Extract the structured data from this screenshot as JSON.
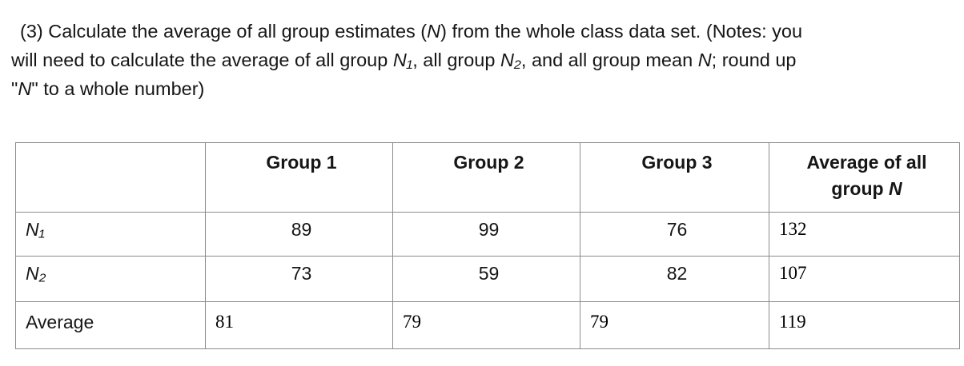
{
  "question": {
    "lines": [
      [
        {
          "t": "(3) Calculate the average of all group estimates ("
        },
        {
          "t": "N",
          "i": true
        },
        {
          "t": ") from the whole class data set. (Notes: you"
        }
      ],
      [
        {
          "t": "will need to calculate the average of all group "
        },
        {
          "t": "N₁",
          "i": true
        },
        {
          "t": ", all group "
        },
        {
          "t": "N₂",
          "i": true
        },
        {
          "t": ", and all group mean "
        },
        {
          "t": "N",
          "i": true
        },
        {
          "t": "; round up"
        }
      ],
      [
        {
          "t": "\""
        },
        {
          "t": "N",
          "i": true
        },
        {
          "t": "\" to a whole number)"
        }
      ]
    ]
  },
  "table": {
    "header": {
      "col1": "Group 1",
      "col2": "Group 2",
      "col3": "Group 3",
      "col4_segments": [
        {
          "t": "Average of all group "
        },
        {
          "t": "N",
          "i": true
        }
      ]
    },
    "rows": [
      {
        "label_segments": [
          {
            "t": "N₁",
            "i": true
          }
        ],
        "values": [
          "89",
          "99",
          "76",
          "132"
        ]
      },
      {
        "label_segments": [
          {
            "t": "N₂",
            "i": true
          }
        ],
        "values": [
          "73",
          "59",
          "82",
          "107"
        ]
      },
      {
        "label_segments": [
          {
            "t": "Average"
          }
        ],
        "values": [
          "81",
          "79",
          "79",
          "119"
        ]
      }
    ]
  }
}
